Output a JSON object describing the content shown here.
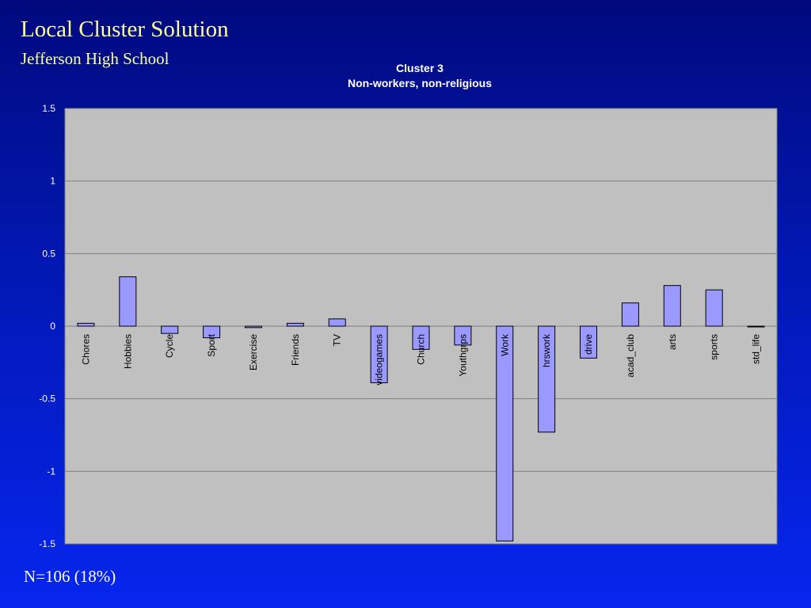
{
  "slide": {
    "title": "Local Cluster Solution",
    "subtitle": "Jefferson High School",
    "footer": "N=106 (18%)"
  },
  "colors": {
    "title_text": "#ffff99",
    "plot_background": "#c0c0c0",
    "bar_fill": "#9999ff",
    "gridline": "#808080"
  },
  "chart_data": {
    "type": "bar",
    "title": "Cluster 3",
    "subtitle": "Non-workers, non-religious",
    "xlabel": "",
    "ylabel": "",
    "ylim": [
      -1.5,
      1.5
    ],
    "yticks": [
      1.5,
      1,
      0.5,
      0,
      -0.5,
      -1,
      -1.5
    ],
    "ytick_labels": [
      "1.5",
      "1",
      "0.5",
      "0",
      "-0.5",
      "-1",
      "-1.5"
    ],
    "grid": true,
    "legend": "none",
    "categories": [
      "Chores",
      "Hobbies",
      "Cycle",
      "Sport",
      "Exercise",
      "Friends",
      "TV",
      "videogames",
      "Church",
      "Youthgrps",
      "Work",
      "hrswork",
      "drive",
      "acad_club",
      "arts",
      "sports",
      "std_life"
    ],
    "values": [
      0.02,
      0.34,
      -0.05,
      -0.08,
      -0.01,
      0.02,
      0.05,
      -0.39,
      -0.16,
      -0.13,
      -1.48,
      -0.73,
      -0.22,
      0.16,
      0.28,
      0.25,
      0.0
    ]
  }
}
